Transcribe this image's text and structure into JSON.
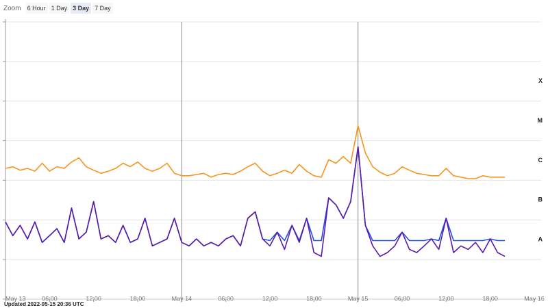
{
  "toolbar": {
    "label": "Zoom",
    "buttons": [
      "6 Hour",
      "1 Day",
      "3 Day",
      "7 Day"
    ],
    "selected": 2
  },
  "footer": "Updated 2022-05-15 20:36 UTC",
  "chart_data": {
    "type": "line",
    "log_scale": true,
    "grid": true,
    "xlim": [
      "May 13 00:00",
      "May 16 00:00"
    ],
    "xticks": [
      {
        "value": "May 13 00:00",
        "label": "May 13"
      },
      {
        "value": "May 13 06:00",
        "label": "06:00"
      },
      {
        "value": "May 13 12:00",
        "label": "12:00"
      },
      {
        "value": "May 13 18:00",
        "label": "18:00"
      },
      {
        "value": "May 14 00:00",
        "label": "May 14"
      },
      {
        "value": "May 14 06:00",
        "label": "06:00"
      },
      {
        "value": "May 14 12:00",
        "label": "12:00"
      },
      {
        "value": "May 14 18:00",
        "label": "18:00"
      },
      {
        "value": "May 15 00:00",
        "label": "May 15"
      },
      {
        "value": "May 15 06:00",
        "label": "06:00"
      },
      {
        "value": "May 15 12:00",
        "label": "12:00"
      },
      {
        "value": "May 15 18:00",
        "label": "18:00"
      },
      {
        "value": "May 16 00:00",
        "label": "May 16"
      }
    ],
    "ylim": [
      1e-09,
      0.01
    ],
    "yticks": [
      1e-09,
      1e-08,
      1e-07,
      1e-06,
      1e-05,
      0.0001,
      0.001,
      0.01
    ],
    "class_labels": [
      {
        "value": 1e-08,
        "label": "A"
      },
      {
        "value": 1e-07,
        "label": "B"
      },
      {
        "value": 1e-06,
        "label": "C"
      },
      {
        "value": 1e-05,
        "label": "M"
      },
      {
        "value": 0.0001,
        "label": "X"
      }
    ],
    "x": [
      "May 13 00:00",
      "May 13 01:00",
      "May 13 02:00",
      "May 13 03:00",
      "May 13 04:00",
      "May 13 05:00",
      "May 13 06:00",
      "May 13 07:00",
      "May 13 08:00",
      "May 13 09:00",
      "May 13 10:00",
      "May 13 11:00",
      "May 13 12:00",
      "May 13 13:00",
      "May 13 14:00",
      "May 13 15:00",
      "May 13 16:00",
      "May 13 17:00",
      "May 13 18:00",
      "May 13 19:00",
      "May 13 20:00",
      "May 13 21:00",
      "May 13 22:00",
      "May 13 23:00",
      "May 14 00:00",
      "May 14 01:00",
      "May 14 02:00",
      "May 14 03:00",
      "May 14 04:00",
      "May 14 05:00",
      "May 14 06:00",
      "May 14 07:00",
      "May 14 08:00",
      "May 14 09:00",
      "May 14 10:00",
      "May 14 11:00",
      "May 14 12:00",
      "May 14 13:00",
      "May 14 14:00",
      "May 14 15:00",
      "May 14 16:00",
      "May 14 17:00",
      "May 14 18:00",
      "May 14 19:00",
      "May 14 20:00",
      "May 14 21:00",
      "May 14 22:00",
      "May 14 23:00",
      "May 15 00:00",
      "May 15 01:00",
      "May 15 02:00",
      "May 15 03:00",
      "May 15 04:00",
      "May 15 05:00",
      "May 15 06:00",
      "May 15 07:00",
      "May 15 08:00",
      "May 15 09:00",
      "May 15 10:00",
      "May 15 11:00",
      "May 15 12:00",
      "May 15 13:00",
      "May 15 14:00",
      "May 15 15:00",
      "May 15 16:00",
      "May 15 17:00",
      "May 15 18:00",
      "May 15 19:00",
      "May 15 20:00"
    ],
    "series": [
      {
        "color": "#f7941d",
        "values": [
          2e-06,
          2.2e-06,
          1.8e-06,
          2e-06,
          1.7e-06,
          2.7e-06,
          1.7e-06,
          2.2e-06,
          2e-06,
          2.9e-06,
          3.7e-06,
          2.2e-06,
          1.8e-06,
          1.5e-06,
          1.7e-06,
          2e-06,
          2.7e-06,
          2.2e-06,
          2.9e-06,
          2e-06,
          1.7e-06,
          2e-06,
          2.7e-06,
          1.5e-06,
          1.3e-06,
          1.3e-06,
          1.4e-06,
          1.5e-06,
          1.2e-06,
          1.4e-06,
          1.5e-06,
          1.4e-06,
          1.7e-06,
          2.2e-06,
          2.7e-06,
          1.7e-06,
          1.3e-06,
          1.5e-06,
          1.8e-06,
          1.5e-06,
          2.5e-06,
          1.7e-06,
          1.3e-06,
          1.2e-06,
          3.3e-06,
          2.7e-06,
          4e-06,
          2.7e-06,
          2.4e-05,
          4.9e-06,
          2.2e-06,
          1.6e-06,
          1.3e-06,
          1.5e-06,
          2.2e-06,
          1.8e-06,
          1.5e-06,
          1.4e-06,
          1.3e-06,
          1.3e-06,
          2e-06,
          1.3e-06,
          1.2e-06,
          1.1e-06,
          1.1e-06,
          1.3e-06,
          1.2e-06,
          1.2e-06,
          1.2e-06
        ]
      },
      {
        "color": "#1f4fe8",
        "values": [
          8.9e-08,
          4e-08,
          7.3e-08,
          3.3e-08,
          8.9e-08,
          2.7e-08,
          4e-08,
          6e-08,
          2.7e-08,
          2e-07,
          3.3e-08,
          4.9e-08,
          2.9e-07,
          3.3e-08,
          4e-08,
          2.7e-08,
          7.3e-08,
          2.7e-08,
          3.3e-08,
          1.1e-07,
          2.2e-08,
          2.7e-08,
          3.3e-08,
          1.1e-07,
          2.7e-08,
          2.2e-08,
          3.3e-08,
          2.2e-08,
          2.7e-08,
          2.2e-08,
          3.3e-08,
          4e-08,
          2.2e-08,
          1.1e-07,
          1.6e-07,
          3.3e-08,
          3e-08,
          4.9e-08,
          3e-08,
          7.3e-08,
          3e-08,
          1.1e-07,
          3e-08,
          3e-08,
          3.6e-07,
          2.4e-07,
          1.1e-07,
          2.9e-07,
          7e-06,
          7.3e-08,
          3e-08,
          3e-08,
          3e-08,
          3e-08,
          4.9e-08,
          3e-08,
          3e-08,
          3e-08,
          3.3e-08,
          3e-08,
          1.1e-07,
          3e-08,
          3e-08,
          3e-08,
          3e-08,
          3e-08,
          3.3e-08,
          3e-08,
          3e-08
        ]
      },
      {
        "color": "#5b1aa8",
        "values": [
          8.9e-08,
          4e-08,
          7.3e-08,
          3.3e-08,
          8.9e-08,
          2.7e-08,
          4e-08,
          6e-08,
          2.7e-08,
          2e-07,
          3.3e-08,
          4.9e-08,
          2.9e-07,
          3.3e-08,
          4e-08,
          2.7e-08,
          7.3e-08,
          2.7e-08,
          3.3e-08,
          1.1e-07,
          2.2e-08,
          2.7e-08,
          3.3e-08,
          1.1e-07,
          2.7e-08,
          2.2e-08,
          3.3e-08,
          2.2e-08,
          2.7e-08,
          2.2e-08,
          3.3e-08,
          4e-08,
          2.2e-08,
          1.1e-07,
          1.6e-07,
          3.3e-08,
          2.2e-08,
          4.9e-08,
          1.8e-08,
          7.3e-08,
          2.7e-08,
          1.1e-07,
          1.5e-08,
          1.2e-08,
          3.6e-07,
          2.4e-07,
          1.1e-07,
          2.9e-07,
          7e-06,
          7.3e-08,
          2.2e-08,
          1.2e-08,
          1.5e-08,
          2.2e-08,
          4.9e-08,
          1.8e-08,
          1.5e-08,
          2.2e-08,
          3.3e-08,
          1.8e-08,
          1.1e-07,
          1.5e-08,
          2.2e-08,
          1.8e-08,
          2.7e-08,
          1.5e-08,
          3.3e-08,
          1.5e-08,
          1.2e-08
        ]
      }
    ]
  }
}
